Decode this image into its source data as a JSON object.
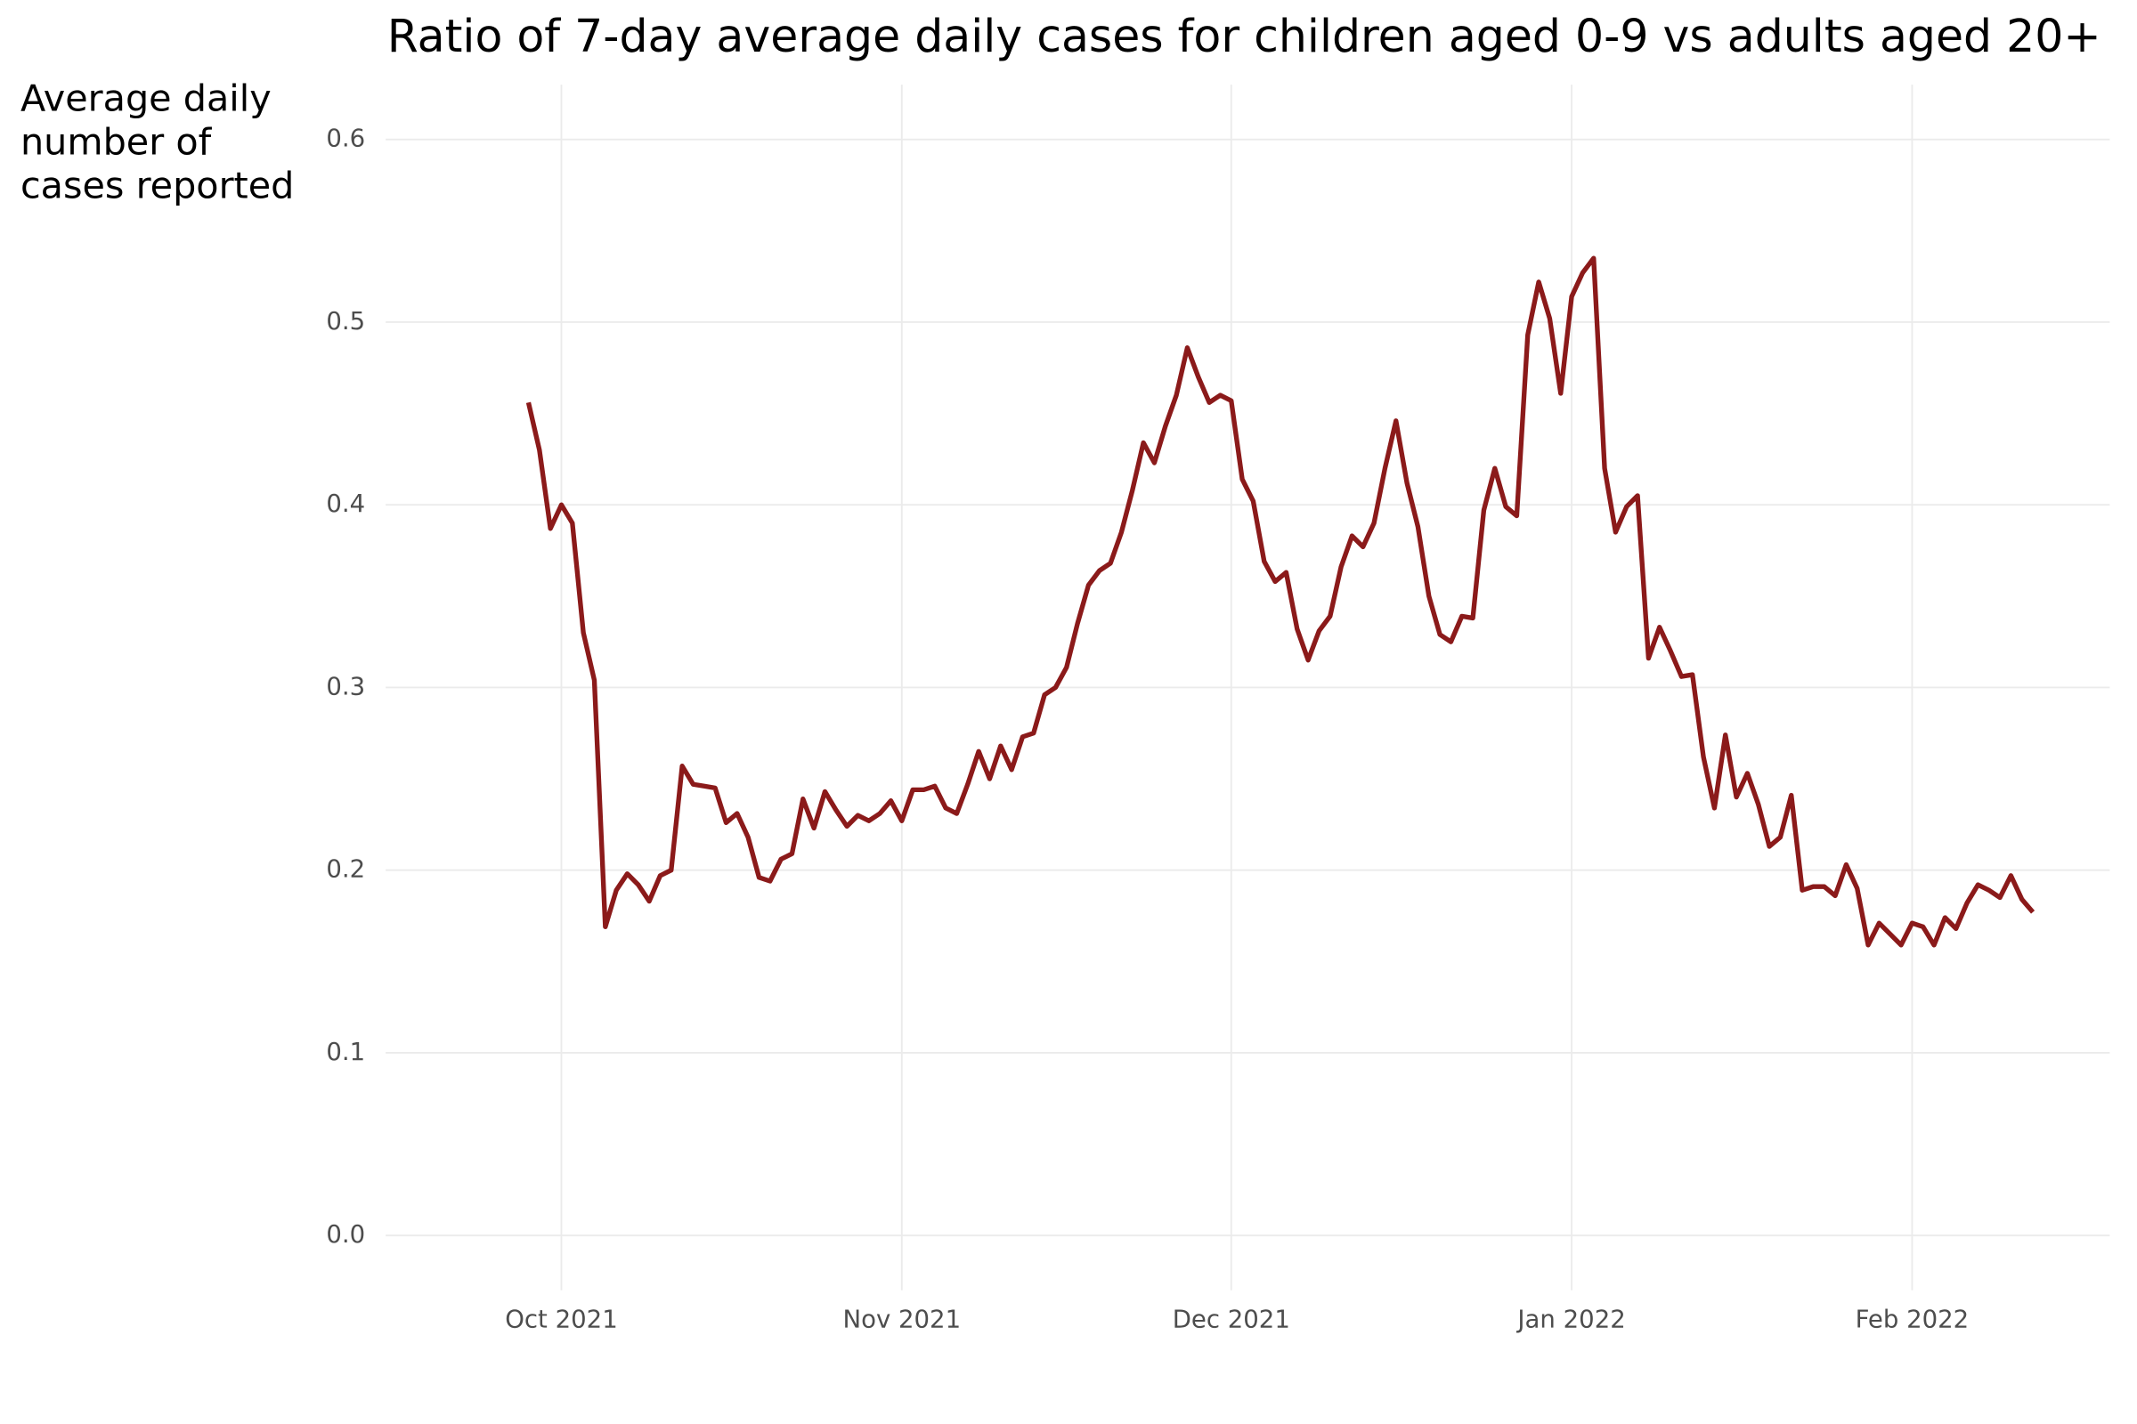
{
  "chart_data": {
    "type": "line",
    "title": "Ratio of 7-day average daily cases for children aged 0-9 vs adults aged 20+",
    "ylabel": [
      "Average daily",
      "number of",
      "cases reported"
    ],
    "x": [
      -3,
      -2,
      -1,
      0,
      1,
      2,
      3,
      4,
      5,
      6,
      7,
      8,
      9,
      10,
      11,
      12,
      13,
      14,
      15,
      16,
      17,
      18,
      19,
      20,
      21,
      22,
      23,
      24,
      25,
      26,
      27,
      28,
      29,
      30,
      31,
      32,
      33,
      34,
      35,
      36,
      37,
      38,
      39,
      40,
      41,
      42,
      43,
      44,
      45,
      46,
      47,
      48,
      49,
      50,
      51,
      52,
      53,
      54,
      55,
      56,
      57,
      58,
      59,
      60,
      61,
      62,
      63,
      64,
      65,
      66,
      67,
      68,
      69,
      70,
      71,
      72,
      73,
      74,
      75,
      76,
      77,
      78,
      79,
      80,
      81,
      82,
      83,
      84,
      85,
      86,
      87,
      88,
      89,
      90,
      91,
      92,
      93,
      94,
      95,
      96,
      97,
      98,
      99,
      100,
      101,
      102,
      103,
      104,
      105,
      106,
      107,
      108,
      109,
      110,
      111,
      112,
      113,
      114,
      115,
      116,
      117,
      118,
      119,
      120,
      121,
      122,
      123,
      124,
      125,
      126,
      127,
      128,
      129,
      130,
      131,
      132,
      133,
      134
    ],
    "values": [
      0.456,
      0.43,
      0.387,
      0.4,
      0.39,
      0.33,
      0.304,
      0.169,
      0.189,
      0.198,
      0.192,
      0.183,
      0.197,
      0.2,
      0.257,
      0.247,
      0.246,
      0.245,
      0.226,
      0.231,
      0.218,
      0.196,
      0.194,
      0.206,
      0.209,
      0.239,
      0.223,
      0.243,
      0.233,
      0.224,
      0.23,
      0.227,
      0.231,
      0.238,
      0.227,
      0.244,
      0.244,
      0.246,
      0.234,
      0.231,
      0.247,
      0.265,
      0.25,
      0.268,
      0.255,
      0.273,
      0.275,
      0.296,
      0.3,
      0.311,
      0.335,
      0.356,
      0.364,
      0.368,
      0.385,
      0.408,
      0.434,
      0.423,
      0.443,
      0.46,
      0.486,
      0.47,
      0.456,
      0.46,
      0.457,
      0.414,
      0.402,
      0.369,
      0.358,
      0.363,
      0.332,
      0.315,
      0.331,
      0.339,
      0.366,
      0.383,
      0.377,
      0.39,
      0.42,
      0.446,
      0.412,
      0.388,
      0.35,
      0.329,
      0.325,
      0.339,
      0.338,
      0.397,
      0.42,
      0.399,
      0.394,
      0.493,
      0.522,
      0.502,
      0.461,
      0.514,
      0.527,
      0.535,
      0.42,
      0.385,
      0.399,
      0.405,
      0.316,
      0.333,
      0.32,
      0.306,
      0.307,
      0.262,
      0.234,
      0.274,
      0.24,
      0.253,
      0.236,
      0.213,
      0.218,
      0.241,
      0.189,
      0.191,
      0.191,
      0.186,
      0.203,
      0.19,
      0.159,
      0.171,
      0.165,
      0.159,
      0.171,
      0.169,
      0.159,
      0.174,
      0.168,
      0.182,
      0.192,
      0.189,
      0.185,
      0.197,
      0.184,
      0.177
    ],
    "color": "#8b1a1a",
    "xlim": [
      -16,
      141
    ],
    "xticks": [
      {
        "value": 0,
        "label": "Oct 2021"
      },
      {
        "value": 31,
        "label": "Nov 2021"
      },
      {
        "value": 61,
        "label": "Dec 2021"
      },
      {
        "value": 92,
        "label": "Jan 2022"
      },
      {
        "value": 123,
        "label": "Feb 2022"
      }
    ],
    "ylim": [
      -0.03,
      0.63
    ],
    "yticks": [
      {
        "value": 0,
        "label": "0.0"
      },
      0.1,
      0.2,
      0.3,
      0.4,
      0.5,
      0.6
    ],
    "grid": true
  }
}
